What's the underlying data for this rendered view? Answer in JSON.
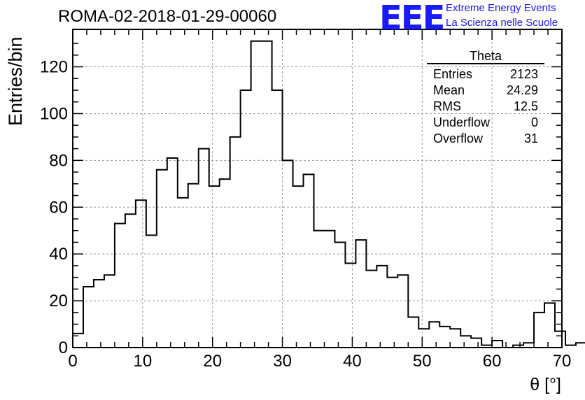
{
  "page_title": "ROMA-02-2018-01-29-00060",
  "logo": {
    "mark": "EEE",
    "line1": "Extreme Energy Events",
    "line2": "La Scienza nelle Scuole",
    "color": "#1a1aff"
  },
  "stats_box": {
    "title": "Theta",
    "rows": [
      {
        "label": "Entries",
        "value": "2123"
      },
      {
        "label": "Mean",
        "value": "24.29"
      },
      {
        "label": "RMS",
        "value": "12.5"
      },
      {
        "label": "Underflow",
        "value": "0"
      },
      {
        "label": "Overflow",
        "value": "31"
      }
    ]
  },
  "chart_data": {
    "type": "bar",
    "style": "step-histogram",
    "title": "ROMA-02-2018-01-29-00060",
    "xlabel": "θ [°]",
    "ylabel": "Entries/bin",
    "xlim": [
      0,
      70
    ],
    "ylim": [
      0,
      136
    ],
    "bin_width": 1.5,
    "grid": true,
    "x_ticks": [
      0,
      10,
      20,
      30,
      40,
      50,
      60,
      70
    ],
    "y_ticks": [
      0,
      20,
      40,
      60,
      80,
      100,
      120
    ],
    "values": [
      6,
      26,
      29,
      31,
      53,
      57,
      63,
      48,
      76,
      81,
      64,
      70,
      85,
      69,
      72,
      90,
      110,
      131,
      131,
      110,
      80,
      69,
      74,
      50,
      50,
      45,
      36,
      46,
      33,
      35,
      30,
      31,
      13,
      8,
      11,
      9,
      8,
      5,
      4,
      1,
      3,
      0,
      1,
      2,
      15,
      19,
      7,
      1,
      2,
      0
    ],
    "line_color": "#000000"
  }
}
